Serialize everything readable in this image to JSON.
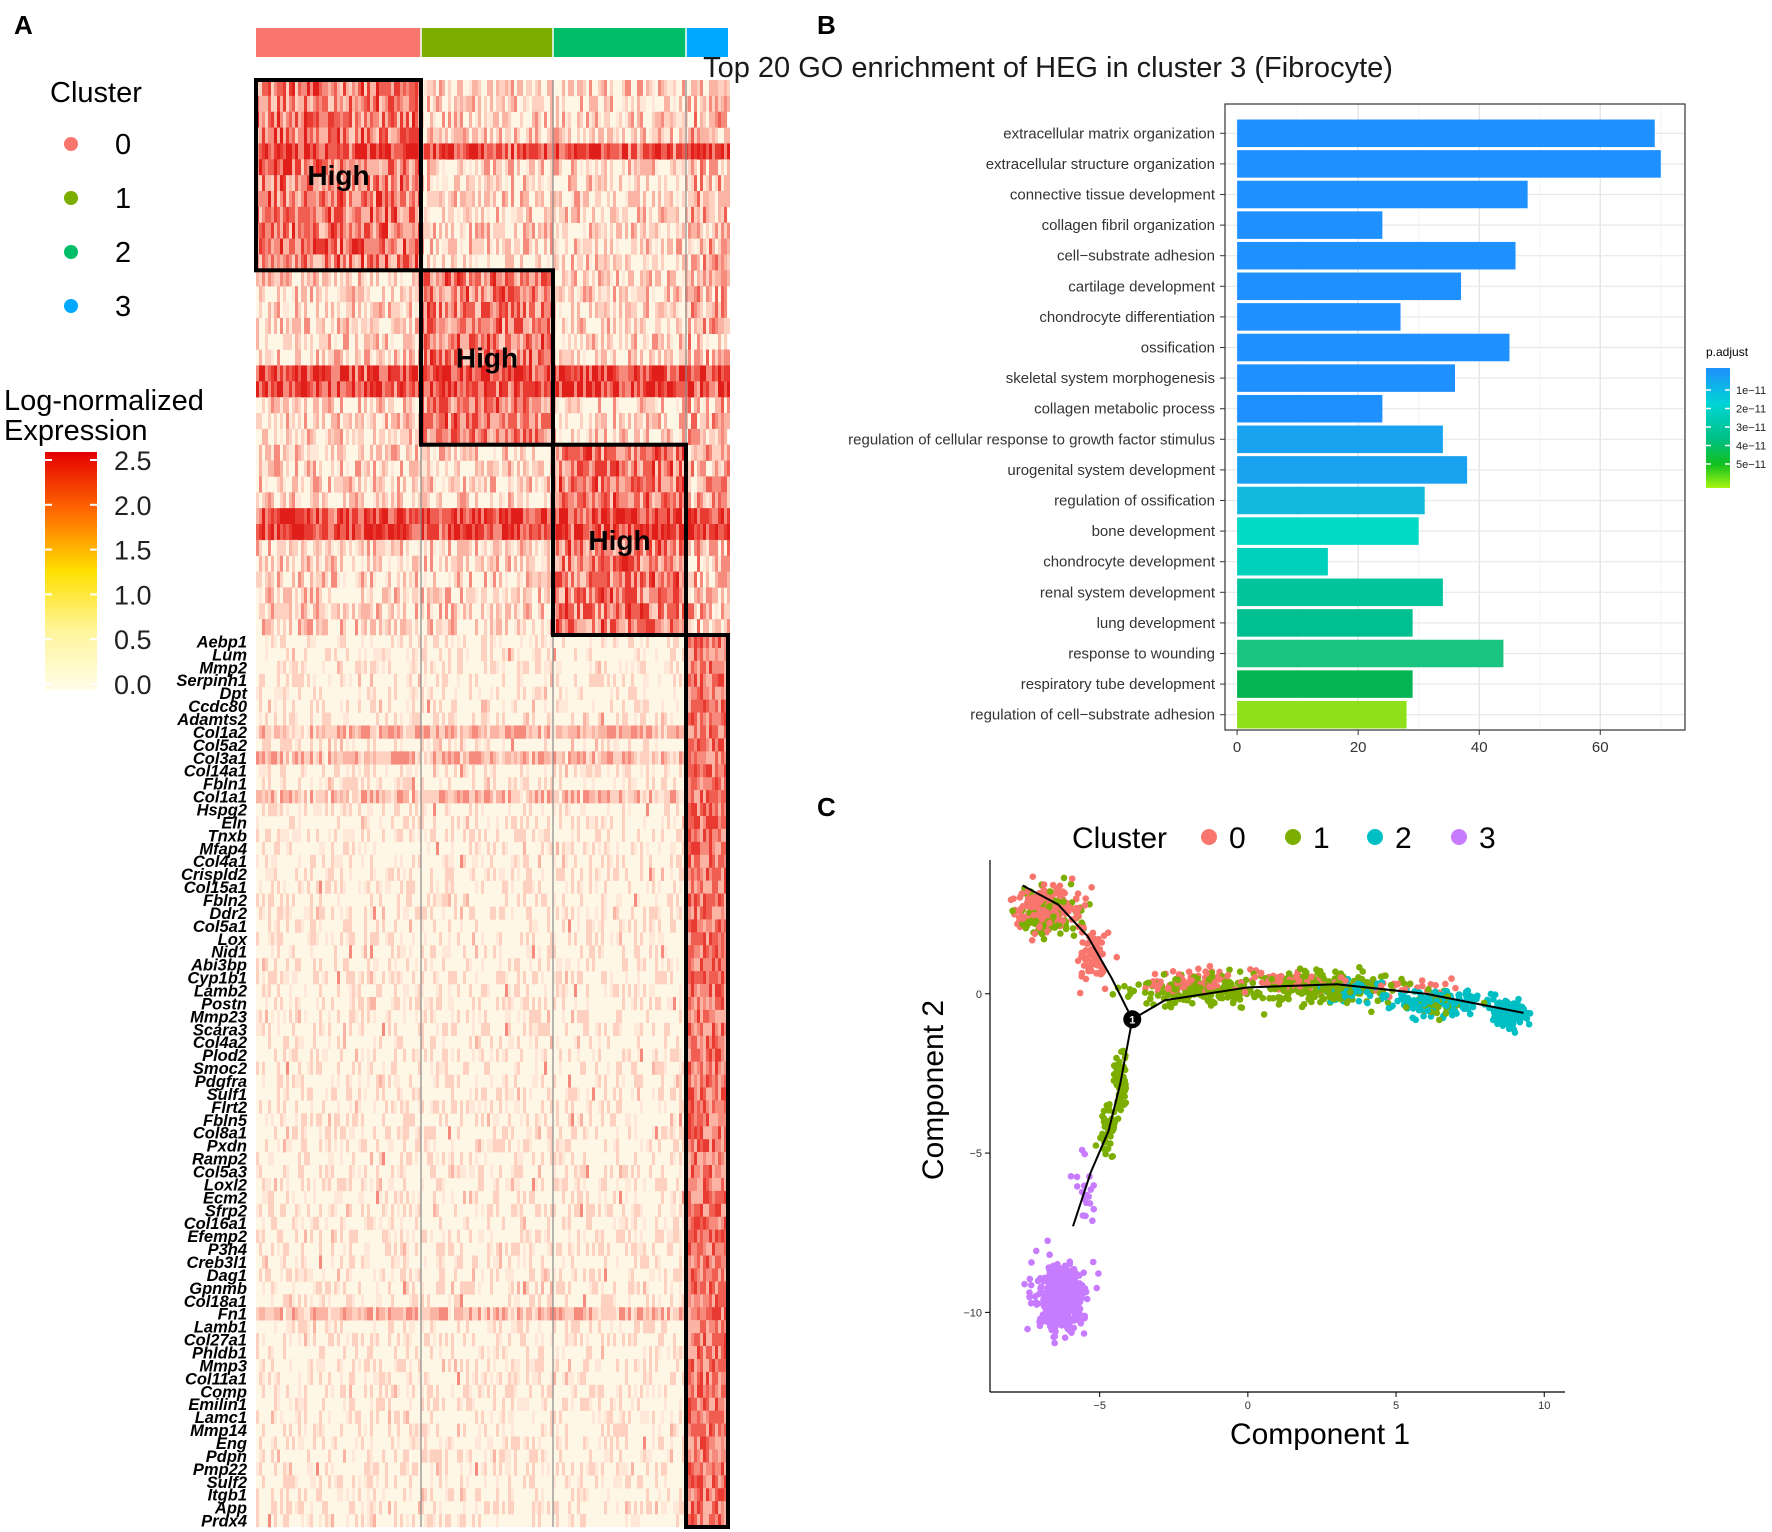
{
  "panels": {
    "a": "A",
    "b": "B",
    "c": "C"
  },
  "heatmap": {
    "legend_title": "Cluster",
    "clusters": [
      {
        "label": "0",
        "color": "#F8766D"
      },
      {
        "label": "1",
        "color": "#7CAE00"
      },
      {
        "label": "2",
        "color": "#00BE67"
      },
      {
        "label": "3",
        "color": "#00A9FF"
      }
    ],
    "scale_title_line1": "Log-normalized",
    "scale_title_line2": "Expression",
    "scale_ticks": [
      "2.5",
      "2.0",
      "1.5",
      "1.0",
      "0.5",
      "0.0"
    ],
    "scale_values": [
      2.5,
      2.0,
      1.5,
      1.0,
      0.5,
      0.0
    ],
    "high_label": "High",
    "block_fractions": [
      0.35,
      0.28,
      0.28,
      0.07
    ],
    "genes": [
      "Aebp1",
      "Lum",
      "Mmp2",
      "Serpinh1",
      "Dpt",
      "Ccdc80",
      "Adamts2",
      "Col1a2",
      "Col5a2",
      "Col3a1",
      "Col14a1",
      "Fbln1",
      "Col1a1",
      "Hspg2",
      "Eln",
      "Tnxb",
      "Mfap4",
      "Col4a1",
      "Crispld2",
      "Col15a1",
      "Fbln2",
      "Ddr2",
      "Col5a1",
      "Lox",
      "Nid1",
      "Abi3bp",
      "Cyp1b1",
      "Lamb2",
      "Postn",
      "Mmp23",
      "Scara3",
      "Col4a2",
      "Plod2",
      "Smoc2",
      "Pdgfra",
      "Sulf1",
      "Flrt2",
      "Fbln5",
      "Col8a1",
      "Pxdn",
      "Ramp2",
      "Col5a3",
      "Loxl2",
      "Ecm2",
      "Sfrp2",
      "Col16a1",
      "Efemp2",
      "P3h4",
      "Creb3l1",
      "Dag1",
      "Gpnmb",
      "Col18a1",
      "Fn1",
      "Lamb1",
      "Col27a1",
      "Phldb1",
      "Mmp3",
      "Col11a1",
      "Comp",
      "Emilin1",
      "Lamc1",
      "Mmp14",
      "Eng",
      "Pdpn",
      "Pmp22",
      "Sulf2",
      "Itgb1",
      "App",
      "Prdx4"
    ]
  },
  "chart_data": [
    {
      "type": "bar",
      "orientation": "horizontal",
      "title": "Top 20 GO enrichment of HEG in cluster 3 (Fibrocyte)",
      "categories": [
        "extracellular matrix organization",
        "extracellular structure organization",
        "connective tissue development",
        "collagen fibril organization",
        "cell−substrate adhesion",
        "cartilage development",
        "chondrocyte differentiation",
        "ossification",
        "skeletal system morphogenesis",
        "collagen metabolic process",
        "regulation of cellular response to growth factor stimulus",
        "urogenital system development",
        "regulation of ossification",
        "bone development",
        "chondrocyte development",
        "renal system development",
        "lung development",
        "response to wounding",
        "respiratory tube development",
        "regulation of cell−substrate adhesion"
      ],
      "values": [
        69,
        70,
        48,
        24,
        46,
        37,
        27,
        45,
        36,
        24,
        34,
        38,
        31,
        30,
        15,
        34,
        29,
        44,
        29,
        28
      ],
      "colors": [
        "#1E90FF",
        "#1E90FF",
        "#1E90FF",
        "#1E90FF",
        "#1E90FF",
        "#1E90FF",
        "#1E90FF",
        "#1E90FF",
        "#1E90FF",
        "#1E90FF",
        "#19A2F0",
        "#19A2F0",
        "#14B9DE",
        "#00D9C6",
        "#00D1BA",
        "#00C49A",
        "#00C08F",
        "#18C47E",
        "#05B553",
        "#8EE01A"
      ],
      "xticks": [
        0,
        20,
        40,
        60
      ],
      "xlim": [
        -2,
        74
      ],
      "legend_title": "p.adjust",
      "legend_ticks": [
        "1e−11",
        "2e−11",
        "3e−11",
        "4e−11",
        "5e−11"
      ]
    },
    {
      "type": "scatter",
      "xlabel": "Component 1",
      "ylabel": "Component 2",
      "legend_title": "Cluster",
      "legend": [
        {
          "label": "0",
          "color": "#F8766D"
        },
        {
          "label": "1",
          "color": "#7CAE00"
        },
        {
          "label": "2",
          "color": "#00BFC4"
        },
        {
          "label": "3",
          "color": "#C77CFF"
        }
      ],
      "xlim": [
        -8.7,
        10.7
      ],
      "ylim": [
        -12.5,
        4.2
      ],
      "xticks": [
        -5,
        0,
        5,
        10
      ],
      "yticks": [
        0,
        -5,
        -10
      ],
      "branch_point": {
        "label": "1",
        "x": -3.9,
        "y": -0.8
      },
      "trajectory": [
        {
          "name": "upper-left",
          "points": [
            [
              -7.6,
              3.4
            ],
            [
              -6.4,
              2.8
            ],
            [
              -5.4,
              1.8
            ],
            [
              -4.6,
              0.5
            ],
            [
              -3.9,
              -0.8
            ]
          ]
        },
        {
          "name": "right",
          "points": [
            [
              -3.9,
              -0.8
            ],
            [
              -2.8,
              -0.2
            ],
            [
              0,
              0.2
            ],
            [
              3,
              0.3
            ],
            [
              6,
              0.0
            ],
            [
              9.3,
              -0.6
            ]
          ]
        },
        {
          "name": "lower",
          "points": [
            [
              -3.9,
              -0.8
            ],
            [
              -4.3,
              -2.8
            ],
            [
              -4.7,
              -4.3
            ],
            [
              -5.3,
              -5.6
            ],
            [
              -5.9,
              -7.3
            ]
          ]
        }
      ],
      "clusters": [
        {
          "label": "0",
          "regions": [
            [
              -6.8,
              2.7,
              0.9,
              0.55,
              200
            ],
            [
              -5.2,
              1.1,
              0.4,
              0.7,
              70
            ],
            [
              -1.8,
              0.4,
              1.2,
              0.35,
              90
            ],
            [
              1.5,
              0.4,
              1.5,
              0.25,
              60
            ],
            [
              5.5,
              0.3,
              1.3,
              0.2,
              25
            ]
          ]
        },
        {
          "label": "1",
          "regions": [
            [
              -6.7,
              2.5,
              0.9,
              0.6,
              110
            ],
            [
              -1.5,
              0.1,
              1.8,
              0.4,
              170
            ],
            [
              2.6,
              0.2,
              2.2,
              0.45,
              200
            ],
            [
              -4.3,
              -2.7,
              0.2,
              0.8,
              70
            ],
            [
              -4.7,
              -4.2,
              0.22,
              0.6,
              40
            ],
            [
              6.5,
              -0.3,
              0.8,
              0.3,
              40
            ]
          ]
        },
        {
          "label": "2",
          "regions": [
            [
              6.5,
              -0.3,
              1.5,
              0.35,
              150
            ],
            [
              8.8,
              -0.6,
              0.45,
              0.35,
              140
            ],
            [
              3.5,
              0.1,
              1.0,
              0.3,
              40
            ]
          ]
        },
        {
          "label": "3",
          "regions": [
            [
              -6.3,
              -9.6,
              0.65,
              0.8,
              460
            ],
            [
              -5.5,
              -6.4,
              0.35,
              0.9,
              20
            ]
          ]
        }
      ]
    }
  ]
}
